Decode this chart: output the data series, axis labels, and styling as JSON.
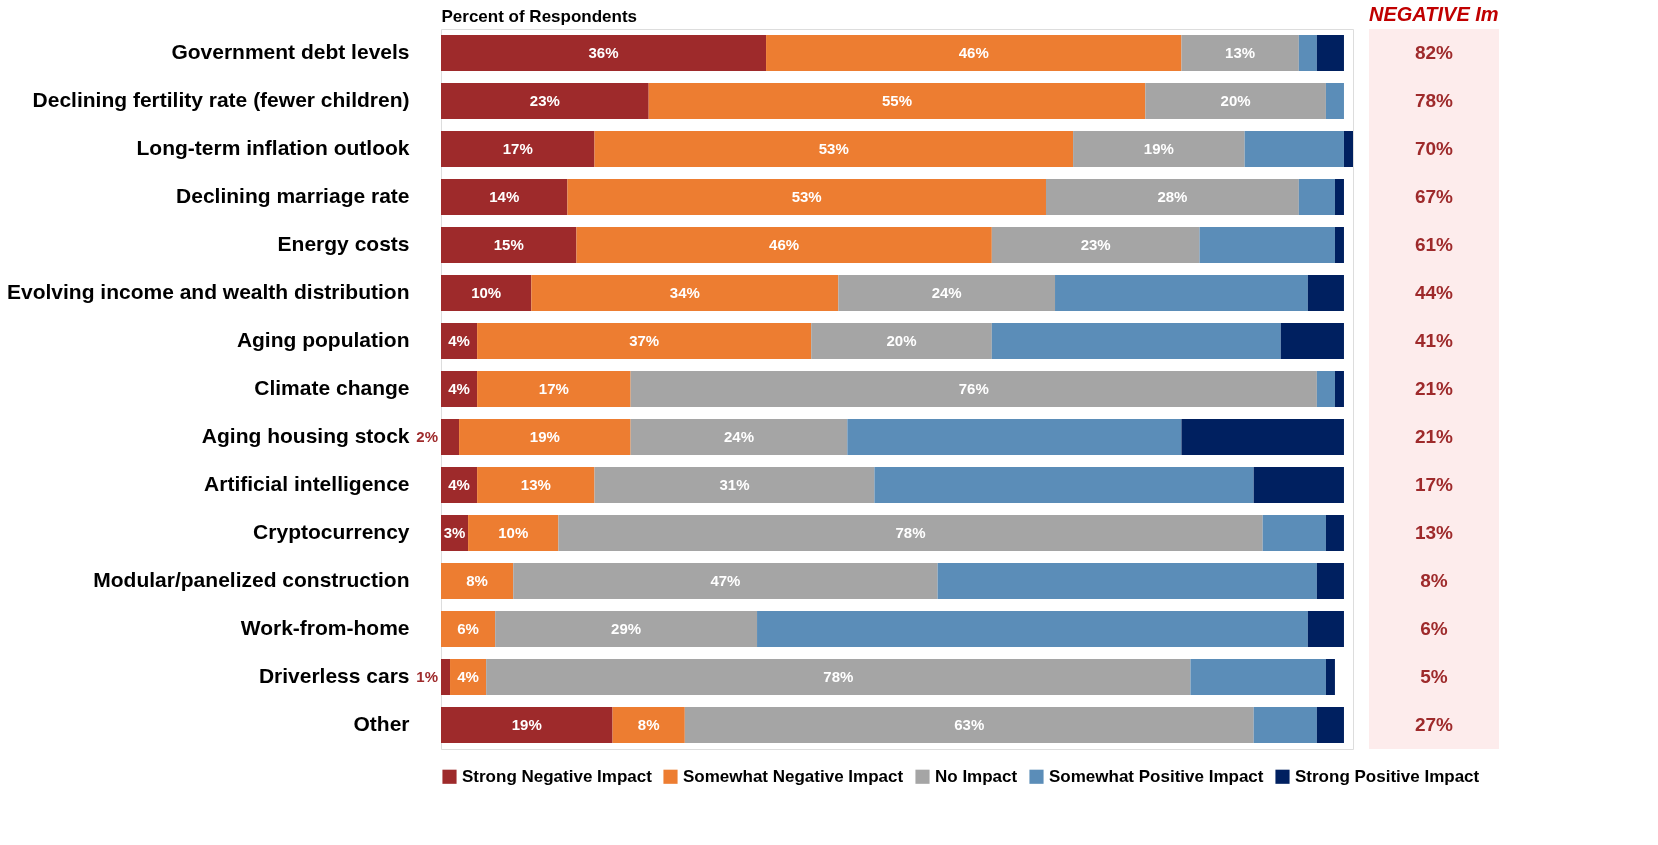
{
  "chart_data": {
    "type": "bar",
    "orientation": "horizontal",
    "stacked": true,
    "xlabel": "Percent of Respondents",
    "legend": "bottom",
    "categories": [
      "Government debt levels",
      "Declining fertility rate (fewer children)",
      "Long-term inflation outlook",
      "Declining marriage rate",
      "Energy costs",
      "Evolving income and wealth distribution",
      "Aging population",
      "Climate change",
      "Aging housing stock",
      "Artificial intelligence",
      "Cryptocurrency",
      "Modular/panelized construction",
      "Work-from-home",
      "Driverless cars",
      "Other"
    ],
    "series": [
      {
        "name": "Strong Negative Impact",
        "color": "#9e2a2b",
        "values": [
          36,
          23,
          17,
          14,
          15,
          10,
          4,
          4,
          2,
          4,
          3,
          0,
          0,
          1,
          19
        ],
        "value_labels": [
          "36%",
          "23%",
          "17%",
          "14%",
          "15%",
          "10%",
          "4%",
          "4%",
          "2%",
          "4%",
          "3%",
          null,
          null,
          "1%",
          "19%"
        ]
      },
      {
        "name": "Somewhat Negative Impact",
        "color": "#ed7d31",
        "values": [
          46,
          55,
          53,
          53,
          46,
          34,
          37,
          17,
          19,
          13,
          10,
          8,
          6,
          4,
          8
        ],
        "value_labels": [
          "46%",
          "55%",
          "53%",
          "53%",
          "46%",
          "34%",
          "37%",
          "17%",
          "19%",
          "13%",
          "10%",
          "8%",
          "6%",
          "4%",
          "8%"
        ]
      },
      {
        "name": "No Impact",
        "color": "#a5a5a5",
        "values": [
          13,
          20,
          19,
          28,
          23,
          24,
          20,
          76,
          24,
          31,
          78,
          47,
          29,
          78,
          63
        ],
        "value_labels": [
          "13%",
          "20%",
          "19%",
          "28%",
          "23%",
          "24%",
          "20%",
          "76%",
          "24%",
          "31%",
          "78%",
          "47%",
          "29%",
          "78%",
          "63%"
        ]
      },
      {
        "name": "Somewhat Positive Impact",
        "color": "#5b8db8",
        "values": [
          2,
          2,
          11,
          4,
          15,
          28,
          32,
          2,
          37,
          42,
          7,
          42,
          61,
          15,
          7
        ]
      },
      {
        "name": "Strong Positive Impact",
        "color": "#002060",
        "values": [
          3,
          0,
          1,
          1,
          1,
          4,
          7,
          1,
          18,
          10,
          2,
          3,
          4,
          1,
          3
        ]
      }
    ],
    "annotations": [
      "NEGATIVE Im",
      "82%",
      "78%",
      "70%",
      "67%",
      "61%",
      "44%",
      "41%",
      "21%",
      "21%",
      "17%",
      "13%",
      "8%",
      "6%",
      "5%",
      "27%"
    ]
  }
}
